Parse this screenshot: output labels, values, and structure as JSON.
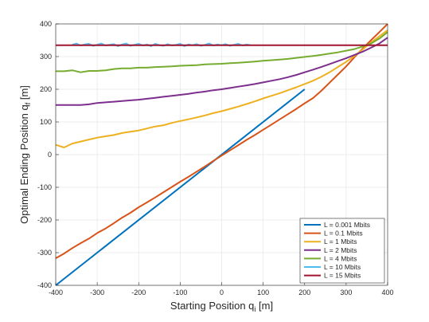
{
  "chart_data": {
    "type": "line",
    "xlabel": "Starting Position q",
    "xlabel_sub": "i",
    "xlabel_unit": " [m]",
    "ylabel": "Optimal Ending Position q",
    "ylabel_sub": "f",
    "ylabel_unit": " [m]",
    "xlim": [
      -400,
      400
    ],
    "ylim": [
      -400,
      400
    ],
    "xticks": [
      -400,
      -300,
      -200,
      -100,
      0,
      100,
      200,
      300,
      400
    ],
    "yticks": [
      -400,
      -300,
      -200,
      -100,
      0,
      100,
      200,
      300,
      400
    ],
    "grid": true,
    "legend_position": "bottom-right",
    "series": [
      {
        "name": "L = 0.001 Mbits",
        "color": "#0072BD",
        "x": [
          -400,
          200
        ],
        "y": [
          -400,
          200
        ]
      },
      {
        "name": "L = 0.1 Mbits",
        "color": "#D95319",
        "x": [
          -400,
          -380,
          -360,
          -340,
          -320,
          -300,
          -280,
          -260,
          -240,
          -220,
          -200,
          -180,
          -160,
          -140,
          -120,
          -100,
          -80,
          -60,
          -40,
          -20,
          0,
          20,
          40,
          60,
          80,
          100,
          120,
          140,
          160,
          180,
          200,
          220,
          240,
          260,
          280,
          300,
          320,
          340,
          360,
          380,
          400
        ],
        "y": [
          -317,
          -303,
          -286,
          -271,
          -257,
          -240,
          -226,
          -210,
          -193,
          -178,
          -161,
          -146,
          -131,
          -115,
          -99,
          -83,
          -68,
          -52,
          -36,
          -19,
          -3,
          13,
          29,
          45,
          60,
          76,
          92,
          108,
          124,
          140,
          157,
          173,
          195,
          220,
          245,
          270,
          298,
          325,
          350,
          375,
          400
        ]
      },
      {
        "name": "L = 1 Mbits",
        "color": "#EDB120",
        "x": [
          -400,
          -380,
          -360,
          -340,
          -320,
          -300,
          -280,
          -260,
          -240,
          -220,
          -200,
          -180,
          -160,
          -140,
          -120,
          -100,
          -80,
          -60,
          -40,
          -20,
          0,
          20,
          40,
          60,
          80,
          100,
          120,
          140,
          160,
          180,
          200,
          220,
          240,
          260,
          280,
          300,
          320,
          340,
          360,
          380,
          400
        ],
        "y": [
          30,
          22,
          34,
          40,
          46,
          52,
          56,
          60,
          66,
          70,
          74,
          80,
          86,
          90,
          97,
          103,
          108,
          114,
          120,
          127,
          133,
          140,
          147,
          155,
          163,
          172,
          180,
          188,
          197,
          206,
          216,
          226,
          238,
          252,
          268,
          284,
          302,
          322,
          343,
          362,
          381
        ]
      },
      {
        "name": "L = 2 Mbits",
        "color": "#7E2F8E",
        "x": [
          -400,
          -380,
          -360,
          -340,
          -320,
          -300,
          -280,
          -260,
          -240,
          -220,
          -200,
          -180,
          -160,
          -140,
          -120,
          -100,
          -80,
          -60,
          -40,
          -20,
          0,
          20,
          40,
          60,
          80,
          100,
          120,
          140,
          160,
          180,
          200,
          220,
          240,
          260,
          280,
          300,
          320,
          340,
          360,
          380,
          400
        ],
        "y": [
          152,
          152,
          152,
          152,
          154,
          158,
          160,
          162,
          164,
          166,
          168,
          171,
          174,
          177,
          180,
          183,
          186,
          190,
          193,
          197,
          200,
          204,
          208,
          212,
          216,
          221,
          226,
          231,
          237,
          244,
          252,
          260,
          268,
          277,
          286,
          295,
          305,
          315,
          327,
          340,
          358
        ]
      },
      {
        "name": "L = 4 Mbits",
        "color": "#77AC30",
        "x": [
          -400,
          -380,
          -360,
          -340,
          -320,
          -300,
          -280,
          -260,
          -240,
          -220,
          -200,
          -180,
          -160,
          -140,
          -120,
          -100,
          -80,
          -60,
          -40,
          -20,
          0,
          20,
          40,
          60,
          80,
          100,
          120,
          140,
          160,
          180,
          200,
          220,
          240,
          260,
          280,
          300,
          320,
          340,
          360,
          380,
          400
        ],
        "y": [
          255,
          255,
          258,
          252,
          256,
          256,
          258,
          262,
          264,
          264,
          266,
          266,
          268,
          269,
          270,
          272,
          273,
          274,
          276,
          277,
          278,
          280,
          281,
          283,
          285,
          287,
          289,
          291,
          293,
          296,
          299,
          302,
          305,
          309,
          313,
          318,
          323,
          331,
          340,
          355,
          375
        ]
      },
      {
        "name": "L = 10 Mbits",
        "color": "#4DBEEE",
        "x": [
          -360,
          -350,
          -340,
          -330,
          -320,
          -310,
          -300,
          -290,
          -280,
          -270,
          -260,
          -250,
          -240,
          -230,
          -220,
          -210,
          -200,
          -190,
          -180,
          -170,
          -160,
          -150,
          -140,
          -130,
          -120,
          -110,
          -100,
          -90,
          -80,
          -70,
          -60,
          -50,
          -40,
          -30,
          -20,
          -10,
          0,
          10,
          20,
          30,
          40,
          50,
          60,
          70
        ],
        "y": [
          336,
          340,
          334,
          337,
          339,
          333,
          336,
          340,
          334,
          336,
          338,
          332,
          337,
          340,
          333,
          336,
          339,
          334,
          337,
          332,
          339,
          335,
          333,
          338,
          334,
          336,
          339,
          332,
          337,
          335,
          338,
          333,
          336,
          340,
          334,
          337,
          335,
          338,
          333,
          336,
          339,
          334,
          337,
          335
        ]
      },
      {
        "name": "L = 15 Mbits",
        "color": "#A2142F",
        "x": [
          -400,
          400
        ],
        "y": [
          335,
          335
        ]
      }
    ]
  }
}
